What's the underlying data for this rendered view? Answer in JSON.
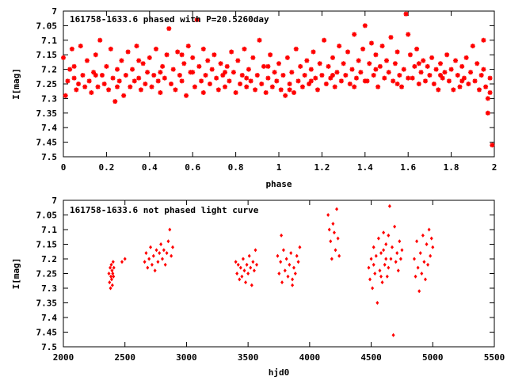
{
  "colors": {
    "points": "#ff0000",
    "axes": "#000000",
    "background": "#ffffff"
  },
  "chart_data": [
    {
      "type": "scatter",
      "title": "161758-1633.6 phased with P=20.5260day",
      "xlabel": "phase",
      "ylabel": "I[mag]",
      "xlim": [
        0,
        2
      ],
      "ylim": [
        7.5,
        7.0
      ],
      "y_inverted": true,
      "xticks": [
        "0",
        "0.2",
        "0.4",
        "0.6",
        "0.8",
        "1",
        "1.2",
        "1.4",
        "1.6",
        "1.8",
        "2"
      ],
      "yticks": [
        "7",
        "7.05",
        "7.1",
        "7.15",
        "7.2",
        "7.25",
        "7.3",
        "7.35",
        "7.4",
        "7.45",
        "7.5"
      ],
      "marker": "star",
      "points": [
        [
          0.0,
          7.16
        ],
        [
          0.01,
          7.29
        ],
        [
          0.02,
          7.24
        ],
        [
          0.03,
          7.2
        ],
        [
          0.04,
          7.13
        ],
        [
          0.05,
          7.23
        ],
        [
          0.06,
          7.27
        ],
        [
          0.07,
          7.25
        ],
        [
          0.08,
          7.12
        ],
        [
          0.09,
          7.22
        ],
        [
          0.1,
          7.26
        ],
        [
          0.11,
          7.17
        ],
        [
          0.12,
          7.24
        ],
        [
          0.13,
          7.28
        ],
        [
          0.14,
          7.21
        ],
        [
          0.15,
          7.15
        ],
        [
          0.16,
          7.26
        ],
        [
          0.17,
          7.1
        ],
        [
          0.18,
          7.22
        ],
        [
          0.19,
          7.25
        ],
        [
          0.2,
          7.19
        ],
        [
          0.21,
          7.27
        ],
        [
          0.22,
          7.13
        ],
        [
          0.23,
          7.23
        ],
        [
          0.24,
          7.31
        ],
        [
          0.25,
          7.2
        ],
        [
          0.26,
          7.24
        ],
        [
          0.27,
          7.17
        ],
        [
          0.28,
          7.29
        ],
        [
          0.29,
          7.22
        ],
        [
          0.3,
          7.14
        ],
        [
          0.31,
          7.26
        ],
        [
          0.32,
          7.2
        ],
        [
          0.33,
          7.24
        ],
        [
          0.34,
          7.12
        ],
        [
          0.35,
          7.23
        ],
        [
          0.36,
          7.27
        ],
        [
          0.37,
          7.18
        ],
        [
          0.38,
          7.25
        ],
        [
          0.39,
          7.21
        ],
        [
          0.4,
          7.16
        ],
        [
          0.41,
          7.26
        ],
        [
          0.42,
          7.22
        ],
        [
          0.43,
          7.13
        ],
        [
          0.44,
          7.24
        ],
        [
          0.45,
          7.28
        ],
        [
          0.46,
          7.19
        ],
        [
          0.47,
          7.23
        ],
        [
          0.48,
          7.15
        ],
        [
          0.49,
          7.06
        ],
        [
          0.5,
          7.25
        ],
        [
          0.51,
          7.2
        ],
        [
          0.52,
          7.27
        ],
        [
          0.53,
          7.14
        ],
        [
          0.54,
          7.22
        ],
        [
          0.55,
          7.24
        ],
        [
          0.56,
          7.18
        ],
        [
          0.57,
          7.29
        ],
        [
          0.58,
          7.12
        ],
        [
          0.59,
          7.21
        ],
        [
          0.6,
          7.16
        ],
        [
          0.61,
          7.26
        ],
        [
          0.62,
          7.03
        ],
        [
          0.63,
          7.19
        ],
        [
          0.64,
          7.24
        ],
        [
          0.65,
          7.13
        ],
        [
          0.66,
          7.22
        ],
        [
          0.67,
          7.17
        ],
        [
          0.68,
          7.25
        ],
        [
          0.69,
          7.2
        ],
        [
          0.7,
          7.15
        ],
        [
          0.71,
          7.23
        ],
        [
          0.72,
          7.27
        ],
        [
          0.73,
          7.18
        ],
        [
          0.74,
          7.22
        ],
        [
          0.75,
          7.26
        ],
        [
          0.76,
          7.19
        ],
        [
          0.77,
          7.24
        ],
        [
          0.78,
          7.14
        ],
        [
          0.79,
          7.21
        ],
        [
          0.8,
          7.28
        ],
        [
          0.81,
          7.17
        ],
        [
          0.82,
          7.25
        ],
        [
          0.83,
          7.22
        ],
        [
          0.84,
          7.13
        ],
        [
          0.85,
          7.26
        ],
        [
          0.86,
          7.2
        ],
        [
          0.87,
          7.24
        ],
        [
          0.88,
          7.16
        ],
        [
          0.89,
          7.27
        ],
        [
          0.9,
          7.22
        ],
        [
          0.91,
          7.1
        ],
        [
          0.92,
          7.25
        ],
        [
          0.93,
          7.19
        ],
        [
          0.94,
          7.28
        ],
        [
          0.95,
          7.23
        ],
        [
          0.96,
          7.15
        ],
        [
          0.97,
          7.26
        ],
        [
          0.98,
          7.21
        ],
        [
          0.99,
          7.24
        ],
        [
          1.0,
          7.18
        ],
        [
          1.01,
          7.27
        ],
        [
          1.02,
          7.22
        ],
        [
          1.03,
          7.29
        ],
        [
          1.04,
          7.16
        ],
        [
          1.05,
          7.25
        ],
        [
          1.06,
          7.21
        ],
        [
          1.07,
          7.28
        ],
        [
          1.08,
          7.13
        ],
        [
          1.09,
          7.24
        ],
        [
          1.1,
          7.19
        ],
        [
          1.11,
          7.26
        ],
        [
          1.12,
          7.22
        ],
        [
          1.13,
          7.17
        ],
        [
          1.14,
          7.25
        ],
        [
          1.15,
          7.2
        ],
        [
          1.16,
          7.14
        ],
        [
          1.17,
          7.23
        ],
        [
          1.18,
          7.27
        ],
        [
          1.19,
          7.18
        ],
        [
          1.2,
          7.22
        ],
        [
          1.21,
          7.1
        ],
        [
          1.22,
          7.25
        ],
        [
          1.23,
          7.19
        ],
        [
          1.24,
          7.23
        ],
        [
          1.25,
          7.16
        ],
        [
          1.26,
          7.26
        ],
        [
          1.27,
          7.21
        ],
        [
          1.28,
          7.12
        ],
        [
          1.29,
          7.24
        ],
        [
          1.3,
          7.18
        ],
        [
          1.31,
          7.22
        ],
        [
          1.32,
          7.14
        ],
        [
          1.33,
          7.25
        ],
        [
          1.34,
          7.2
        ],
        [
          1.35,
          7.08
        ],
        [
          1.36,
          7.23
        ],
        [
          1.37,
          7.17
        ],
        [
          1.38,
          7.21
        ],
        [
          1.39,
          7.13
        ],
        [
          1.4,
          7.05
        ],
        [
          1.41,
          7.24
        ],
        [
          1.42,
          7.18
        ],
        [
          1.43,
          7.11
        ],
        [
          1.44,
          7.22
        ],
        [
          1.45,
          7.15
        ],
        [
          1.46,
          7.26
        ],
        [
          1.47,
          7.19
        ],
        [
          1.48,
          7.12
        ],
        [
          1.49,
          7.23
        ],
        [
          1.5,
          7.17
        ],
        [
          1.51,
          7.21
        ],
        [
          1.52,
          7.09
        ],
        [
          1.53,
          7.24
        ],
        [
          1.54,
          7.18
        ],
        [
          1.55,
          7.14
        ],
        [
          1.56,
          7.22
        ],
        [
          1.57,
          7.26
        ],
        [
          1.58,
          7.2
        ],
        [
          1.59,
          7.01
        ],
        [
          1.6,
          7.08
        ],
        [
          1.61,
          7.15
        ],
        [
          1.62,
          7.23
        ],
        [
          1.63,
          7.19
        ],
        [
          1.64,
          7.13
        ],
        [
          1.65,
          7.25
        ],
        [
          1.66,
          7.21
        ],
        [
          1.67,
          7.17
        ],
        [
          1.68,
          7.24
        ],
        [
          1.69,
          7.19
        ],
        [
          1.7,
          7.22
        ],
        [
          1.71,
          7.16
        ],
        [
          1.72,
          7.25
        ],
        [
          1.73,
          7.2
        ],
        [
          1.74,
          7.27
        ],
        [
          1.75,
          7.18
        ],
        [
          1.76,
          7.23
        ],
        [
          1.77,
          7.21
        ],
        [
          1.78,
          7.15
        ],
        [
          1.79,
          7.24
        ],
        [
          1.8,
          7.2
        ],
        [
          1.81,
          7.27
        ],
        [
          1.82,
          7.17
        ],
        [
          1.83,
          7.22
        ],
        [
          1.84,
          7.26
        ],
        [
          1.85,
          7.19
        ],
        [
          1.86,
          7.23
        ],
        [
          1.87,
          7.16
        ],
        [
          1.88,
          7.25
        ],
        [
          1.89,
          7.21
        ],
        [
          1.9,
          7.12
        ],
        [
          1.91,
          7.24
        ],
        [
          1.92,
          7.18
        ],
        [
          1.93,
          7.27
        ],
        [
          1.94,
          7.22
        ],
        [
          1.95,
          7.1
        ],
        [
          1.96,
          7.26
        ],
        [
          1.97,
          7.3
        ],
        [
          1.98,
          7.23
        ],
        [
          1.99,
          7.46
        ],
        [
          0.05,
          7.19
        ],
        [
          0.15,
          7.22
        ],
        [
          0.25,
          7.26
        ],
        [
          0.35,
          7.17
        ],
        [
          0.45,
          7.21
        ],
        [
          0.55,
          7.15
        ],
        [
          0.65,
          7.28
        ],
        [
          0.75,
          7.21
        ],
        [
          0.85,
          7.23
        ],
        [
          0.95,
          7.19
        ],
        [
          1.05,
          7.27
        ],
        [
          1.15,
          7.24
        ],
        [
          1.25,
          7.22
        ],
        [
          1.35,
          7.26
        ],
        [
          1.45,
          7.2
        ],
        [
          1.55,
          7.25
        ],
        [
          1.65,
          7.18
        ],
        [
          1.75,
          7.22
        ],
        [
          1.85,
          7.24
        ],
        [
          1.95,
          7.2
        ],
        [
          1.97,
          7.35
        ],
        [
          1.98,
          7.28
        ],
        [
          0.6,
          7.21
        ],
        [
          1.4,
          7.24
        ],
        [
          1.6,
          7.23
        ]
      ]
    },
    {
      "type": "scatter",
      "title": "161758-1633.6 not phased light curve",
      "xlabel": "hjd0",
      "ylabel": "I[mag]",
      "xlim": [
        2000,
        5500
      ],
      "ylim": [
        7.5,
        7.0
      ],
      "y_inverted": true,
      "xticks": [
        "2000",
        "2500",
        "3000",
        "3500",
        "4000",
        "4500",
        "5000",
        "5500"
      ],
      "yticks": [
        "7",
        "7.05",
        "7.1",
        "7.15",
        "7.2",
        "7.25",
        "7.3",
        "7.35",
        "7.4",
        "7.45",
        "7.5"
      ],
      "marker": "dot",
      "points": [
        [
          2370,
          7.25
        ],
        [
          2375,
          7.28
        ],
        [
          2380,
          7.23
        ],
        [
          2383,
          7.3
        ],
        [
          2386,
          7.26
        ],
        [
          2389,
          7.22
        ],
        [
          2392,
          7.27
        ],
        [
          2395,
          7.24
        ],
        [
          2398,
          7.29
        ],
        [
          2401,
          7.25
        ],
        [
          2404,
          7.21
        ],
        [
          2407,
          7.26
        ],
        [
          2410,
          7.23
        ],
        [
          2476,
          7.21
        ],
        [
          2500,
          7.2
        ],
        [
          2660,
          7.21
        ],
        [
          2672,
          7.18
        ],
        [
          2684,
          7.23
        ],
        [
          2696,
          7.2
        ],
        [
          2708,
          7.16
        ],
        [
          2720,
          7.22
        ],
        [
          2732,
          7.19
        ],
        [
          2744,
          7.24
        ],
        [
          2756,
          7.17
        ],
        [
          2768,
          7.21
        ],
        [
          2780,
          7.18
        ],
        [
          2792,
          7.15
        ],
        [
          2804,
          7.2
        ],
        [
          2816,
          7.17
        ],
        [
          2828,
          7.22
        ],
        [
          2840,
          7.18
        ],
        [
          2852,
          7.14
        ],
        [
          2864,
          7.1
        ],
        [
          2876,
          7.19
        ],
        [
          2888,
          7.16
        ],
        [
          3400,
          7.21
        ],
        [
          3410,
          7.25
        ],
        [
          3420,
          7.22
        ],
        [
          3430,
          7.27
        ],
        [
          3440,
          7.23
        ],
        [
          3450,
          7.26
        ],
        [
          3460,
          7.2
        ],
        [
          3470,
          7.24
        ],
        [
          3480,
          7.28
        ],
        [
          3490,
          7.22
        ],
        [
          3500,
          7.25
        ],
        [
          3510,
          7.19
        ],
        [
          3520,
          7.23
        ],
        [
          3530,
          7.29
        ],
        [
          3540,
          7.21
        ],
        [
          3550,
          7.24
        ],
        [
          3560,
          7.17
        ],
        [
          3570,
          7.22
        ],
        [
          3740,
          7.19
        ],
        [
          3752,
          7.25
        ],
        [
          3764,
          7.21
        ],
        [
          3776,
          7.28
        ],
        [
          3788,
          7.17
        ],
        [
          3800,
          7.24
        ],
        [
          3812,
          7.2
        ],
        [
          3824,
          7.26
        ],
        [
          3836,
          7.22
        ],
        [
          3848,
          7.18
        ],
        [
          3860,
          7.27
        ],
        [
          3872,
          7.23
        ],
        [
          3884,
          7.25
        ],
        [
          3896,
          7.19
        ],
        [
          3908,
          7.21
        ],
        [
          3920,
          7.16
        ],
        [
          3770,
          7.12
        ],
        [
          3860,
          7.29
        ],
        [
          4150,
          7.05
        ],
        [
          4160,
          7.1
        ],
        [
          4170,
          7.14
        ],
        [
          4180,
          7.2
        ],
        [
          4190,
          7.08
        ],
        [
          4200,
          7.11
        ],
        [
          4210,
          7.17
        ],
        [
          4220,
          7.03
        ],
        [
          4230,
          7.13
        ],
        [
          4240,
          7.19
        ],
        [
          4480,
          7.23
        ],
        [
          4490,
          7.27
        ],
        [
          4500,
          7.2
        ],
        [
          4510,
          7.3
        ],
        [
          4520,
          7.16
        ],
        [
          4530,
          7.25
        ],
        [
          4540,
          7.19
        ],
        [
          4550,
          7.35
        ],
        [
          4560,
          7.13
        ],
        [
          4570,
          7.24
        ],
        [
          4580,
          7.18
        ],
        [
          4590,
          7.28
        ],
        [
          4600,
          7.11
        ],
        [
          4610,
          7.22
        ],
        [
          4620,
          7.15
        ],
        [
          4630,
          7.26
        ],
        [
          4640,
          7.12
        ],
        [
          4650,
          7.02
        ],
        [
          4660,
          7.2
        ],
        [
          4670,
          7.16
        ],
        [
          4680,
          7.46
        ],
        [
          4690,
          7.09
        ],
        [
          4700,
          7.21
        ],
        [
          4710,
          7.18
        ],
        [
          4720,
          7.24
        ],
        [
          4730,
          7.14
        ],
        [
          4740,
          7.2
        ],
        [
          4750,
          7.17
        ],
        [
          4850,
          7.2
        ],
        [
          4860,
          7.26
        ],
        [
          4870,
          7.14
        ],
        [
          4880,
          7.23
        ],
        [
          4890,
          7.31
        ],
        [
          4900,
          7.18
        ],
        [
          4910,
          7.25
        ],
        [
          4920,
          7.12
        ],
        [
          4930,
          7.21
        ],
        [
          4940,
          7.27
        ],
        [
          4950,
          7.15
        ],
        [
          4960,
          7.22
        ],
        [
          4970,
          7.1
        ],
        [
          4980,
          7.19
        ],
        [
          4990,
          7.13
        ],
        [
          5000,
          7.16
        ],
        [
          4520,
          7.22
        ],
        [
          4580,
          7.26
        ],
        [
          4600,
          7.17
        ],
        [
          4620,
          7.2
        ],
        [
          4640,
          7.23
        ]
      ]
    }
  ]
}
